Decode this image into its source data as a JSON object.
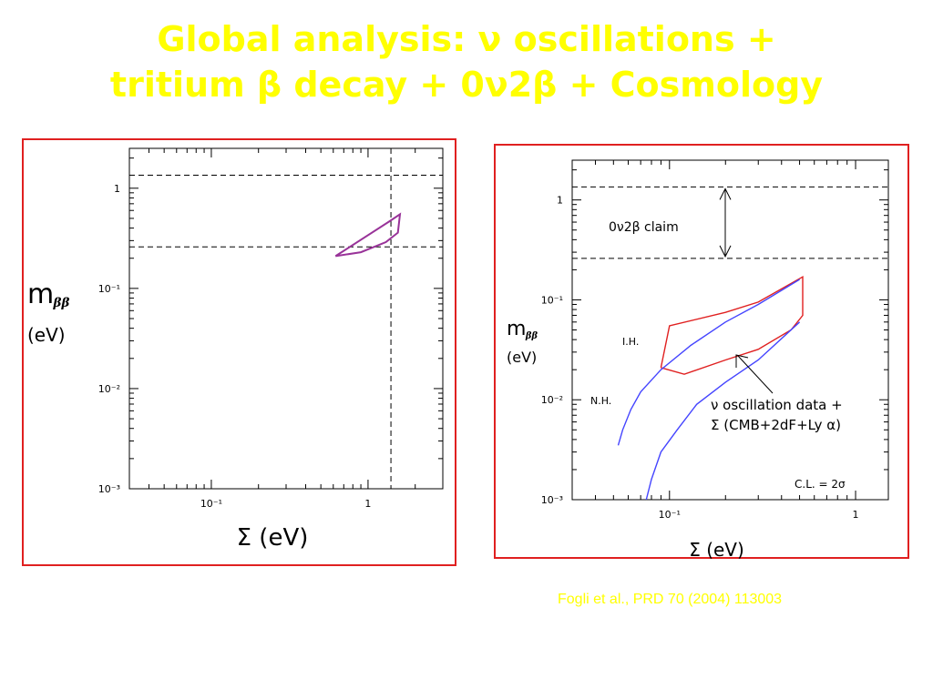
{
  "title_line1": "Global analysis: ν oscillations +",
  "title_line2": "tritium β decay + 0ν2β + Cosmology",
  "footer_citation": "Fogli et al., PRD 70 (2004) 113003",
  "colors": {
    "title": "#ffff00",
    "frame": "#e02020",
    "contour_left": "#993399",
    "ih_band": "#e02020",
    "nh_band": "#4444ff"
  },
  "chart_data": [
    {
      "type": "line",
      "title": "",
      "xlabel": "Σ (eV)",
      "ylabel_main": "m",
      "ylabel_sub": "ββ",
      "ylabel_unit": "(eV)",
      "xscale": "log",
      "yscale": "log",
      "xlim": [
        0.03,
        3.0
      ],
      "ylim": [
        0.001,
        2.5
      ],
      "x_ticks": [
        {
          "value": 0.1,
          "label": "10⁻¹"
        },
        {
          "value": 1,
          "label": "1"
        }
      ],
      "y_ticks": [
        {
          "value": 0.001,
          "label": "10⁻³"
        },
        {
          "value": 0.01,
          "label": "10⁻²"
        },
        {
          "value": 0.1,
          "label": "10⁻¹"
        },
        {
          "value": 1,
          "label": "1"
        }
      ],
      "reference_lines": {
        "horizontal": [
          1.35,
          0.26
        ],
        "vertical": [
          1.4
        ]
      },
      "series": [
        {
          "x": [
            0.62,
            1.35,
            1.6,
            1.55,
            1.3,
            0.9,
            0.62
          ],
          "y": [
            0.21,
            0.46,
            0.55,
            0.36,
            0.29,
            0.23,
            0.21
          ]
        }
      ]
    },
    {
      "type": "line",
      "title": "",
      "xlabel": "Σ (eV)",
      "ylabel_main": "m",
      "ylabel_sub": "ββ",
      "ylabel_unit": "(eV)",
      "xscale": "log",
      "yscale": "log",
      "xlim": [
        0.03,
        1.5
      ],
      "ylim": [
        0.001,
        2.5
      ],
      "x_ticks": [
        {
          "value": 0.1,
          "label": "10⁻¹"
        },
        {
          "value": 1,
          "label": "1"
        }
      ],
      "y_ticks": [
        {
          "value": 0.001,
          "label": "10⁻³"
        },
        {
          "value": 0.01,
          "label": "10⁻²"
        },
        {
          "value": 0.1,
          "label": "10⁻¹"
        },
        {
          "value": 1,
          "label": "1"
        }
      ],
      "reference_lines": {
        "horizontal": [
          1.35,
          0.26
        ]
      },
      "annotations": {
        "claim": "0ν2β  claim",
        "ih": "I.H.",
        "nh": "N.H.",
        "osc_line1": "ν oscillation data +",
        "osc_line2": "Σ (CMB+2dF+Ly α)",
        "cl": "C.L. = 2σ"
      },
      "series": [
        {
          "name": "I.H.",
          "x": [
            0.09,
            0.1,
            0.2,
            0.3,
            0.52,
            0.52,
            0.45,
            0.3,
            0.2,
            0.12,
            0.09,
            0.09
          ],
          "y": [
            0.021,
            0.055,
            0.075,
            0.095,
            0.17,
            0.07,
            0.05,
            0.032,
            0.025,
            0.018,
            0.021,
            0.021
          ]
        },
        {
          "name": "N.H. upper",
          "x": [
            0.053,
            0.056,
            0.062,
            0.07,
            0.09,
            0.13,
            0.2,
            0.3,
            0.5
          ],
          "y": [
            0.0035,
            0.005,
            0.008,
            0.012,
            0.02,
            0.035,
            0.06,
            0.09,
            0.16
          ]
        },
        {
          "name": "N.H. lower",
          "x": [
            0.075,
            0.08,
            0.09,
            0.11,
            0.14,
            0.2,
            0.3,
            0.5
          ],
          "y": [
            0.001,
            0.0016,
            0.003,
            0.005,
            0.009,
            0.015,
            0.025,
            0.06
          ]
        }
      ]
    }
  ]
}
